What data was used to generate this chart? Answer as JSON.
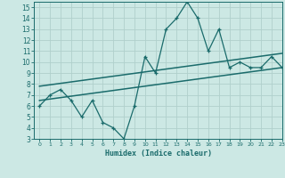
{
  "xlabel": "Humidex (Indice chaleur)",
  "ylabel": "",
  "bg_color": "#cce8e4",
  "grid_color": "#b0d0cc",
  "line_color": "#1a6b6b",
  "x_data": [
    0,
    1,
    2,
    3,
    4,
    5,
    6,
    7,
    8,
    9,
    10,
    11,
    12,
    13,
    14,
    15,
    16,
    17,
    18,
    19,
    20,
    21,
    22,
    23
  ],
  "y_data": [
    6,
    7,
    7.5,
    6.5,
    5,
    6.5,
    4.5,
    4,
    3,
    6,
    10.5,
    9,
    13,
    14,
    15.5,
    14,
    11,
    13,
    9.5,
    10,
    9.5,
    9.5,
    10.5,
    9.5
  ],
  "trend1_x": [
    0,
    23
  ],
  "trend1_y": [
    6.5,
    9.5
  ],
  "trend2_x": [
    0,
    23
  ],
  "trend2_y": [
    7.8,
    10.8
  ],
  "ylim": [
    3,
    15.5
  ],
  "xlim": [
    -0.5,
    23
  ],
  "yticks": [
    3,
    4,
    5,
    6,
    7,
    8,
    9,
    10,
    11,
    12,
    13,
    14,
    15
  ],
  "xticks": [
    0,
    1,
    2,
    3,
    4,
    5,
    6,
    7,
    8,
    9,
    10,
    11,
    12,
    13,
    14,
    15,
    16,
    17,
    18,
    19,
    20,
    21,
    22,
    23
  ]
}
